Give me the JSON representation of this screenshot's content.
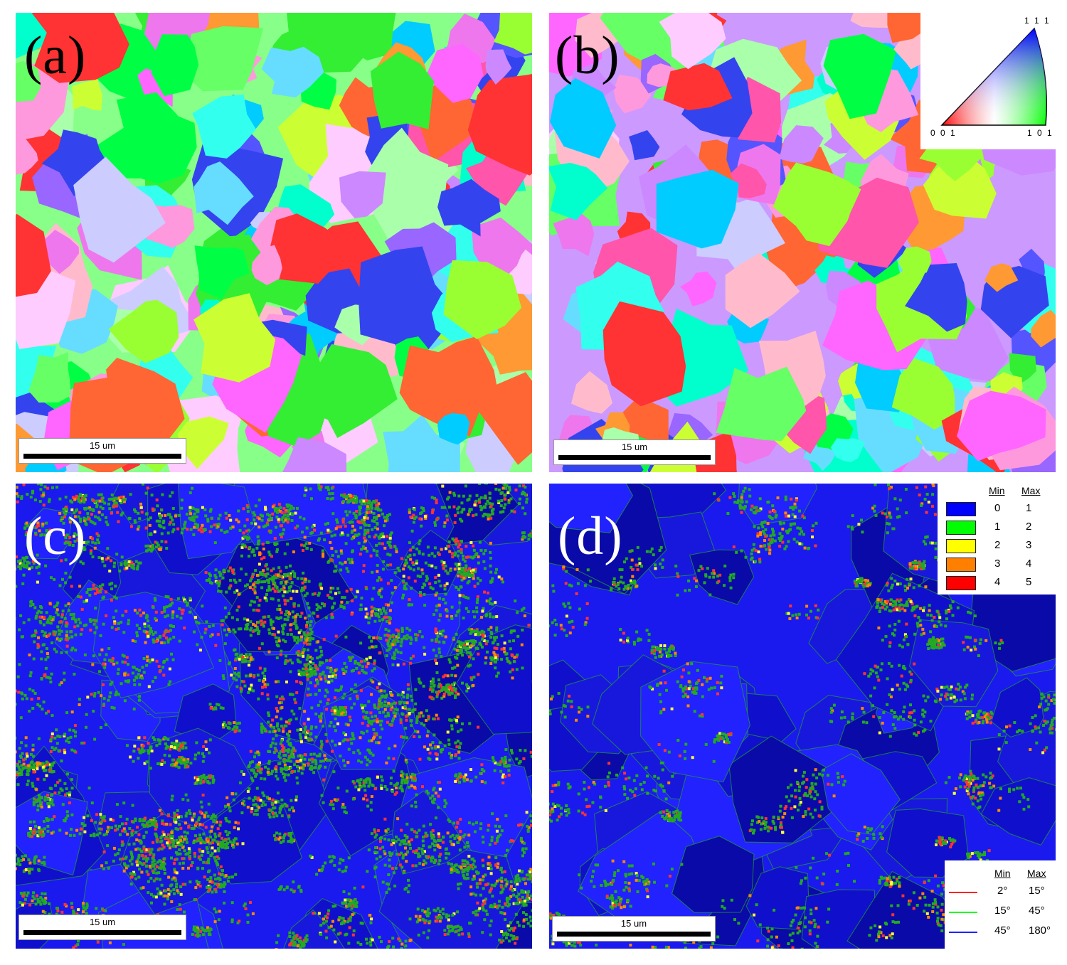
{
  "panels": {
    "a": {
      "label": "(a)",
      "scale_text": "15 um"
    },
    "b": {
      "label": "(b)",
      "scale_text": "15 um"
    },
    "c": {
      "label": "(c)",
      "scale_text": "15 um"
    },
    "d": {
      "label": "(d)",
      "scale_text": "15 um"
    }
  },
  "ipf_key": {
    "top": "1 1 1",
    "left": "0 0 1",
    "right": "1 0 1"
  },
  "kam_legend": {
    "min_header": "Min",
    "max_header": "Max",
    "rows": [
      {
        "min": "0",
        "max": "1",
        "color": "#0000ff"
      },
      {
        "min": "1",
        "max": "2",
        "color": "#00ff00"
      },
      {
        "min": "2",
        "max": "3",
        "color": "#ffff00"
      },
      {
        "min": "3",
        "max": "4",
        "color": "#ff8000"
      },
      {
        "min": "4",
        "max": "5",
        "color": "#ff0000"
      }
    ]
  },
  "boundary_legend": {
    "min_header": "Min",
    "max_header": "Max",
    "rows": [
      {
        "min": "2°",
        "max": "15°",
        "color": "#ff2020"
      },
      {
        "min": "15°",
        "max": "45°",
        "color": "#00ff00"
      },
      {
        "min": "45°",
        "max": "180°",
        "color": "#2020ff"
      }
    ]
  },
  "colors": {
    "ipf_palette": [
      "#ff66ff",
      "#ee77ee",
      "#cc88ff",
      "#9966ff",
      "#5555ff",
      "#3344ee",
      "#00ff44",
      "#33ee33",
      "#66ff66",
      "#99ff33",
      "#ccff33",
      "#00ffcc",
      "#33ffee",
      "#00ccff",
      "#66ddff",
      "#ff3333",
      "#ff6633",
      "#ff9933",
      "#ffbbcc",
      "#ff99dd",
      "#ccccff",
      "#ffccff",
      "#aaffaa",
      "#ff55aa"
    ],
    "kam_background": "#1a1aee",
    "kam_green": "#22aa22",
    "kam_red": "#ff3333",
    "kam_orange": "#ff8800",
    "kam_yellow": "#ffff33"
  }
}
